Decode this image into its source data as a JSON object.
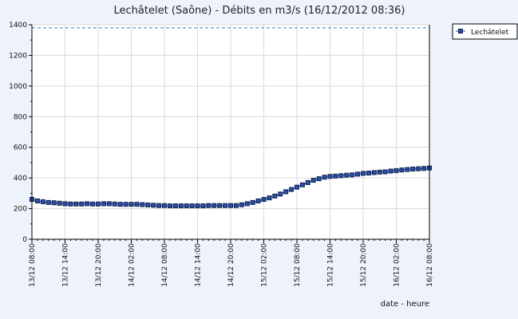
{
  "chart_data": {
    "type": "line",
    "title": "Lechâtelet (Saône) - Débits en m3/s (16/12/2012 08:36)",
    "xlabel": "date - heure",
    "ylabel": "",
    "ylim": [
      0,
      1400
    ],
    "yticks": [
      0,
      200,
      400,
      600,
      800,
      1000,
      1200,
      1400
    ],
    "x_tick_labels": [
      "13/12 08:00",
      "13/12 14:00",
      "13/12 20:00",
      "14/12 02:00",
      "14/12 08:00",
      "14/12 14:00",
      "14/12 20:00",
      "15/12 02:00",
      "15/12 08:00",
      "15/12 14:00",
      "15/12 20:00",
      "16/12 02:00",
      "16/12 08:00"
    ],
    "x_unit_hours_per_tick": 6,
    "grid": true,
    "legend_position": "top-right",
    "reference_line": {
      "value": 1380,
      "style": "dashed",
      "color": "#2a7fc0"
    },
    "series": [
      {
        "name": "Lechâtelet",
        "color": "#1f3f8f",
        "marker": "square",
        "x": [
          0,
          1,
          2,
          3,
          4,
          5,
          6,
          7,
          8,
          9,
          10,
          11,
          12,
          13,
          14,
          15,
          16,
          17,
          18,
          19,
          20,
          21,
          22,
          23,
          24,
          25,
          26,
          27,
          28,
          29,
          30,
          31,
          32,
          33,
          34,
          35,
          36,
          37,
          38,
          39,
          40,
          41,
          42,
          43,
          44,
          45,
          46,
          47,
          48,
          49,
          50,
          51,
          52,
          53,
          54,
          55,
          56,
          57,
          58,
          59,
          60,
          61,
          62,
          63,
          64,
          65,
          66,
          67,
          68,
          69,
          70,
          71,
          72
        ],
        "values": [
          260,
          250,
          245,
          240,
          238,
          235,
          232,
          230,
          230,
          230,
          232,
          230,
          230,
          232,
          232,
          230,
          228,
          228,
          228,
          228,
          226,
          224,
          222,
          220,
          220,
          218,
          218,
          218,
          218,
          218,
          218,
          218,
          220,
          220,
          220,
          220,
          220,
          220,
          225,
          232,
          240,
          250,
          260,
          270,
          282,
          295,
          310,
          325,
          340,
          355,
          370,
          385,
          395,
          405,
          410,
          412,
          415,
          418,
          420,
          425,
          430,
          432,
          435,
          438,
          440,
          445,
          448,
          452,
          455,
          458,
          460,
          462,
          465
        ]
      }
    ]
  }
}
